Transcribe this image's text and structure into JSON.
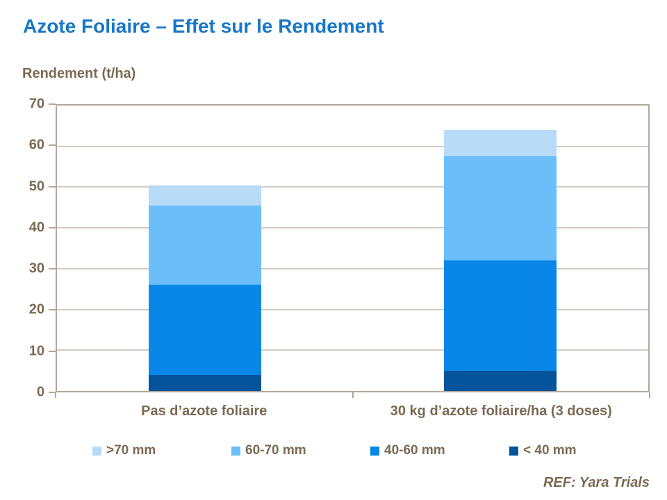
{
  "title": "Azote Foliaire – Effet sur le Rendement",
  "y_axis_title": "Rendement (t/ha)",
  "reference": "REF: Yara Trials",
  "colors": {
    "title_blue": "#1777c6",
    "text_brown": "#7b6a54",
    "gridline": "#d2cbc2",
    "axis_border": "#b2a79a"
  },
  "chart_data": {
    "type": "bar",
    "stacked": true,
    "title": "Azote Foliaire – Effet sur le Rendement",
    "ylabel": "Rendement (t/ha)",
    "categories": [
      "Pas d’azote foliaire",
      "30 kg d’azote foliaire/ha (3 doses)"
    ],
    "series": [
      {
        "name": ">70 mm",
        "color": "#b8dcf8",
        "values": [
          5,
          6.5
        ]
      },
      {
        "name": "60-70 mm",
        "color": "#6cbefa",
        "values": [
          19.5,
          25.5
        ]
      },
      {
        "name": "40-60 mm",
        "color": "#0887e9",
        "values": [
          22,
          27
        ]
      },
      {
        "name": "< 40 mm",
        "color": "#03549b",
        "values": [
          4,
          5
        ]
      }
    ],
    "totals": [
      50.5,
      64
    ],
    "ylim": [
      0,
      70
    ],
    "yticks": [
      0,
      10,
      20,
      30,
      40,
      50,
      60,
      70
    ],
    "grid": true,
    "legend_position": "bottom"
  }
}
